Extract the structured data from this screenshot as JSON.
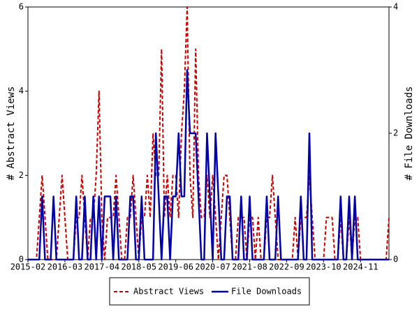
{
  "chart_data": {
    "type": "line",
    "y_label": "# Abstract Views",
    "y2_label": "# File Downloads",
    "categories": [
      "2015-02",
      null,
      null,
      null,
      null,
      null,
      null,
      null,
      null,
      null,
      null,
      null,
      null,
      "2016-03",
      null,
      null,
      null,
      null,
      null,
      null,
      null,
      null,
      null,
      null,
      null,
      null,
      "2017-04",
      null,
      null,
      null,
      null,
      null,
      null,
      null,
      null,
      null,
      null,
      null,
      null,
      "2018-05",
      null,
      null,
      null,
      null,
      null,
      null,
      null,
      null,
      null,
      null,
      null,
      null,
      "2019-06",
      null,
      null,
      null,
      null,
      null,
      null,
      null,
      null,
      null,
      null,
      null,
      null,
      "2020-07",
      null,
      null,
      null,
      null,
      null,
      null,
      null,
      null,
      null,
      null,
      null,
      null,
      "2021-08",
      null,
      null,
      null,
      null,
      null,
      null,
      null,
      null,
      null,
      null,
      null,
      null,
      "2022-09",
      null,
      null,
      null,
      null,
      null,
      null,
      null,
      null,
      null,
      null,
      null,
      null,
      "2023-10",
      null,
      null,
      null,
      null,
      null,
      null,
      null,
      null,
      null,
      null,
      null,
      null,
      "2024-11",
      null,
      null,
      null,
      null,
      null,
      null,
      null,
      null,
      null,
      null
    ],
    "series": [
      {
        "name": "Abstract Views",
        "color": "#cc0000",
        "dash": true,
        "values": [
          0,
          0,
          0,
          0,
          1,
          2,
          1,
          0,
          0,
          0,
          0,
          1,
          2,
          1,
          0,
          0,
          0,
          1,
          1,
          2,
          1,
          0,
          1,
          1,
          2,
          4,
          1,
          0,
          1,
          1,
          1,
          2,
          1,
          0,
          0,
          1,
          1,
          2,
          1,
          0,
          1,
          1,
          2,
          1,
          3,
          2,
          2,
          5,
          1,
          2,
          1,
          2,
          2,
          1,
          3,
          4,
          6,
          2,
          1,
          5,
          2,
          1,
          1,
          2,
          1,
          2,
          1,
          0,
          1,
          2,
          2,
          1,
          0,
          0,
          1,
          1,
          1,
          0,
          1,
          1,
          0,
          1,
          0,
          0,
          1,
          1,
          2,
          1,
          0,
          0,
          0,
          0,
          0,
          0,
          1,
          0,
          1,
          1,
          1,
          2,
          1,
          0,
          0,
          0,
          0,
          1,
          1,
          1,
          0,
          0,
          1,
          0,
          0,
          1,
          0,
          1,
          1,
          0,
          0,
          0,
          0,
          0,
          0,
          0,
          0,
          0,
          0,
          1
        ]
      },
      {
        "name": "File Downloads",
        "color": "#0000aa",
        "axis": "y2",
        "values": [
          0,
          0,
          0,
          0,
          0,
          1,
          0,
          0,
          0,
          1,
          0,
          0,
          0,
          0,
          0,
          0,
          0,
          1,
          0,
          0,
          1,
          0,
          0,
          1,
          0,
          1,
          0,
          1,
          1,
          1,
          0,
          1,
          0,
          0,
          0,
          0,
          1,
          1,
          0,
          0,
          1,
          0,
          0,
          0,
          0,
          2,
          1,
          0,
          1,
          1,
          0,
          1,
          1,
          2,
          1,
          1,
          3,
          2,
          2,
          2,
          1,
          0,
          0,
          2,
          1,
          0,
          2,
          1,
          0,
          0,
          1,
          1,
          0,
          0,
          0,
          1,
          0,
          0,
          1,
          0,
          0,
          0,
          0,
          0,
          1,
          0,
          0,
          0,
          1,
          0,
          0,
          0,
          0,
          0,
          0,
          0,
          1,
          0,
          0,
          2,
          0,
          0,
          0,
          0,
          0,
          0,
          0,
          0,
          0,
          0,
          1,
          0,
          0,
          1,
          0,
          1,
          0,
          0,
          0,
          0,
          0,
          0,
          0,
          0,
          0,
          0,
          0,
          0
        ]
      }
    ],
    "ylim": [
      0,
      6
    ],
    "yticks": [
      0,
      2,
      4,
      6
    ],
    "y2lim": [
      0,
      4
    ],
    "y2ticks": [
      0,
      2,
      4
    ],
    "legend": "bottom"
  }
}
